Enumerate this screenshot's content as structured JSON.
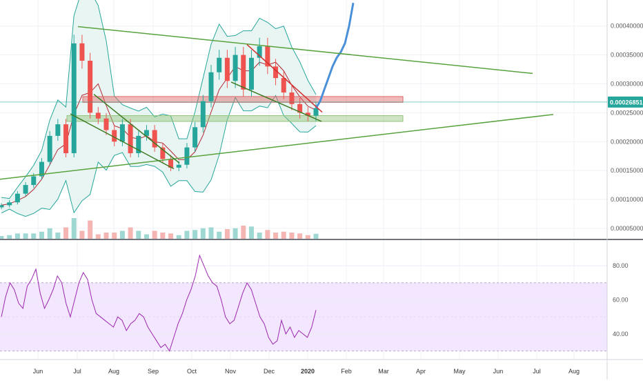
{
  "chart_data": [
    {
      "type": "candlestick",
      "title": "",
      "x_labels": [
        "Jun",
        "Jul",
        "Aug",
        "Sep",
        "Oct",
        "Nov",
        "Dec",
        "2020",
        "Feb",
        "Mar",
        "Apr",
        "May",
        "Jun",
        "Jul",
        "Aug"
      ],
      "y_tick_labels": [
        "0.00005000",
        "0.00010000",
        "0.00015000",
        "0.00020000",
        "0.00025000",
        "0.00030000",
        "0.00035000",
        "0.00040000"
      ],
      "y_ticks": [
        5e-05,
        0.0001,
        0.00015,
        0.0002,
        0.00025,
        0.0003,
        0.00035,
        0.0004
      ],
      "ylim": [
        3.2e-05,
        0.000445
      ],
      "last_price_label": "0.00026851",
      "last_price": 0.00026851,
      "close_series": [
        9e-05,
        9.5e-05,
        0.00011,
        0.000125,
        0.00014,
        0.000165,
        0.00021,
        0.00023,
        0.00018,
        0.00037,
        0.00034,
        0.00025,
        0.00024,
        0.00022,
        0.0002,
        0.00023,
        0.00018,
        0.00021,
        0.00022,
        0.00019,
        0.00017,
        0.000155,
        0.00016,
        0.00019,
        0.000225,
        0.00027,
        0.00032,
        0.000345,
        0.000305,
        0.00035,
        0.00029,
        0.000345,
        0.000365,
        0.00033,
        0.00031,
        0.000285,
        0.000265,
        0.00025,
        0.000245,
        0.000258
      ],
      "projection_series": [
        0.000258,
        0.00027,
        0.00029,
        0.00031,
        0.00033,
        0.000345,
        0.000355,
        0.00037,
        0.0004,
        0.00044
      ],
      "colors": {
        "up": "#26a69a",
        "down": "#ef5350",
        "bands": "#26a69a",
        "basis": "#b22833",
        "projection": "#4a90d9",
        "trendline": "#57a23c"
      },
      "zones": [
        {
          "name": "resistance",
          "y_range": [
            0.000268,
            0.000278
          ],
          "color": "#e06666"
        },
        {
          "name": "support",
          "y_range": [
            0.000235,
            0.000245
          ],
          "color": "#93c47d"
        }
      ]
    },
    {
      "type": "line",
      "title": "",
      "y_tick_labels": [
        "40.00",
        "60.00",
        "80.00"
      ],
      "y_ticks": [
        40,
        60,
        80
      ],
      "ylim": [
        25,
        95
      ],
      "band": [
        30,
        70
      ],
      "band_color": "#f3e6ff",
      "line_color": "#9c27b0",
      "values": [
        50,
        62,
        70,
        66,
        58,
        55,
        68,
        72,
        78,
        64,
        55,
        60,
        66,
        74,
        70,
        58,
        50,
        60,
        70,
        76,
        72,
        60,
        52,
        50,
        48,
        46,
        44,
        50,
        48,
        42,
        46,
        48,
        52,
        50,
        44,
        40,
        36,
        32,
        34,
        30,
        38,
        46,
        52,
        60,
        66,
        74,
        86,
        80,
        74,
        70,
        68,
        60,
        50,
        46,
        48,
        56,
        64,
        70,
        66,
        58,
        50,
        46,
        38,
        34,
        36,
        48,
        40,
        44,
        38,
        42,
        40,
        38,
        44,
        54
      ]
    }
  ]
}
